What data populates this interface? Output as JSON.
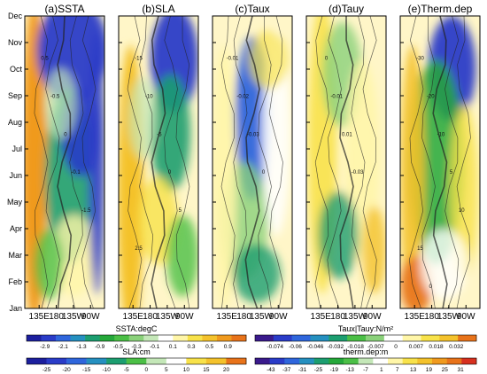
{
  "chart_data": [
    {
      "type": "heatmap",
      "title": "(a)SSTA",
      "x_ticks": [
        "135E",
        "180",
        "135W",
        "90W"
      ],
      "y_ticks": [
        "Jan",
        "Feb",
        "Mar",
        "Apr",
        "May",
        "Jun",
        "Jul",
        "Aug",
        "Sep",
        "Oct",
        "Nov",
        "Dec"
      ],
      "colorbar": "SSTA",
      "contour_labels": [
        "0.5",
        "-0.5",
        "0",
        "-0.1",
        "-1.5"
      ]
    },
    {
      "type": "heatmap",
      "title": "(b)SLA",
      "x_ticks": [
        "135E",
        "180",
        "135W",
        "90W"
      ],
      "y_ticks": [
        "Jan",
        "Feb",
        "Mar",
        "Apr",
        "May",
        "Jun",
        "Jul",
        "Aug",
        "Sep",
        "Oct",
        "Nov",
        "Dec"
      ],
      "colorbar": "SLA",
      "contour_labels": [
        "-15",
        "-10",
        "-5",
        "0",
        "5",
        "2.5"
      ]
    },
    {
      "type": "heatmap",
      "title": "(c)Taux",
      "x_ticks": [
        "135E",
        "180",
        "135W",
        "90W"
      ],
      "y_ticks": [
        "Jan",
        "Feb",
        "Mar",
        "Apr",
        "May",
        "Jun",
        "Jul",
        "Aug",
        "Sep",
        "Oct",
        "Nov",
        "Dec"
      ],
      "colorbar": "TAU",
      "contour_labels": [
        "-0.01",
        "-0.02",
        "-0.03",
        "0"
      ]
    },
    {
      "type": "heatmap",
      "title": "(d)Tauy",
      "x_ticks": [
        "135E",
        "180",
        "135W",
        "90W"
      ],
      "y_ticks": [
        "Jan",
        "Feb",
        "Mar",
        "Apr",
        "May",
        "Jun",
        "Jul",
        "Aug",
        "Sep",
        "Oct",
        "Nov",
        "Dec"
      ],
      "colorbar": "TAU",
      "contour_labels": [
        "0",
        "-0.01",
        "0.01",
        "-0.03"
      ]
    },
    {
      "type": "heatmap",
      "title": "(e)Therm.dep",
      "x_ticks": [
        "135E",
        "180",
        "135W",
        "90W"
      ],
      "y_ticks": [
        "Jan",
        "Feb",
        "Mar",
        "Apr",
        "May",
        "Jun",
        "Jul",
        "Aug",
        "Sep",
        "Oct",
        "Nov",
        "Dec"
      ],
      "colorbar": "THERM",
      "contour_labels": [
        "-30",
        "-20",
        "-10",
        "5",
        "10",
        "15",
        "0"
      ]
    }
  ],
  "colorbars": [
    {
      "key": "SSTA",
      "label": "SSTA:degC",
      "ticks": [
        "-2.9",
        "-2.1",
        "-1.3",
        "-0.9",
        "-0.5",
        "-0.3",
        "-0.1",
        "0.1",
        "0.3",
        "0.5",
        "0.9"
      ],
      "colors": [
        "#1c1f9e",
        "#2a3cc8",
        "#2f66dc",
        "#2590c0",
        "#1c9e70",
        "#25a83a",
        "#4bbf46",
        "#8ad17a",
        "#c4e7b8",
        "#ffffff",
        "#fff6a8",
        "#f8e24a",
        "#f4c22c",
        "#f09a1e",
        "#e8731a"
      ]
    },
    {
      "key": "SLA",
      "label": "SLA:cm",
      "ticks": [
        "-25",
        "-20",
        "-15",
        "-10",
        "-5",
        "0",
        "5",
        "10",
        "15",
        "20"
      ],
      "colors": [
        "#1c1f9e",
        "#2a3cc8",
        "#2f66dc",
        "#2590c0",
        "#1c9e70",
        "#4bbf46",
        "#c4e7b8",
        "#ffffff",
        "#f8e24a",
        "#f4c22c",
        "#e8731a"
      ]
    },
    {
      "key": "TAU",
      "label": "Taux|Tauy:N/m²",
      "ticks": [
        "-0.074",
        "-0.06",
        "-0.046",
        "-0.032",
        "-0.018",
        "-0.007",
        "0",
        "0.007",
        "0.018",
        "0.032"
      ],
      "colors": [
        "#3a1a8c",
        "#2a3cc8",
        "#2f66dc",
        "#2590c0",
        "#1c9e70",
        "#4bbf46",
        "#8ad17a",
        "#ffffff",
        "#fff6a8",
        "#f8e24a",
        "#f4c22c",
        "#e8731a"
      ]
    },
    {
      "key": "THERM",
      "label": "therm.dep:m",
      "ticks": [
        "-43",
        "-37",
        "-31",
        "-25",
        "-19",
        "-13",
        "-7",
        "1",
        "7",
        "13",
        "19",
        "25",
        "31"
      ],
      "colors": [
        "#3a1a8c",
        "#2a3cc8",
        "#2f66dc",
        "#2590c0",
        "#1c9e70",
        "#25a83a",
        "#4bbf46",
        "#c4e7b8",
        "#ffffff",
        "#fff6a8",
        "#f8e24a",
        "#f4c22c",
        "#f09a1e",
        "#e8731a",
        "#d7301f"
      ]
    }
  ]
}
